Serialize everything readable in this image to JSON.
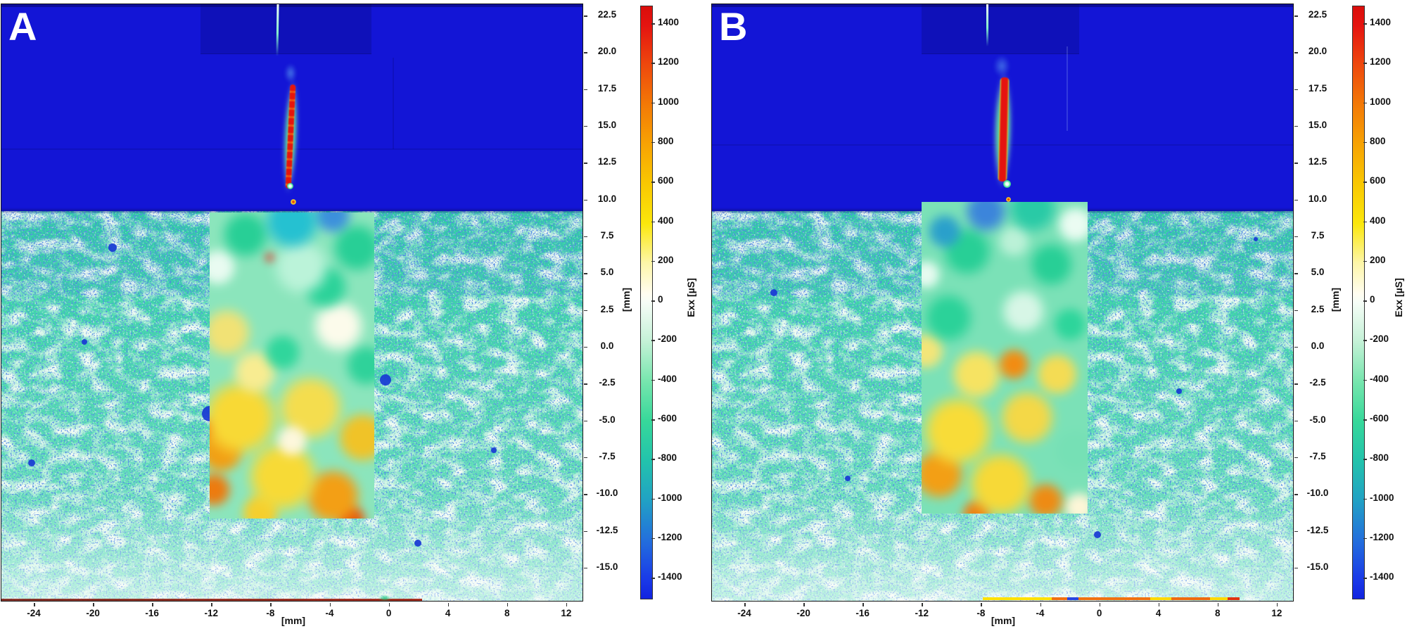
{
  "figure": {
    "type": "DIC horizontal strain (Exx) field comparison, two panels",
    "panels": [
      {
        "label": "A"
      },
      {
        "label": "B"
      }
    ],
    "axes": {
      "x_unit": "[mm]",
      "y_unit": "[mm]",
      "x_ticks": [
        "-24",
        "-20",
        "-16",
        "-12",
        "-8",
        "-4",
        "0",
        "4",
        "8",
        "12"
      ],
      "y_ticks": [
        "22.5",
        "20.0",
        "17.5",
        "15.0",
        "12.5",
        "10.0",
        "7.5",
        "5.0",
        "2.5",
        "0.0",
        "-2.5",
        "-5.0",
        "-7.5",
        "-10.0",
        "-12.5",
        "-15.0"
      ]
    },
    "colorbar": {
      "label": "Exx [µS]",
      "ticks": [
        "1400",
        "1200",
        "1000",
        "800",
        "600",
        "400",
        "200",
        "0",
        "-200",
        "-400",
        "-600",
        "-800",
        "-1000",
        "-1200",
        "-1400"
      ],
      "gradient_top_color": "#e01410",
      "gradient_zero_color": "#f4fcf5",
      "gradient_bottom_color": "#1123e0"
    },
    "colors": {
      "zero_strain_blue": "#1315d6",
      "speckle_teal": "#3ed3a6",
      "crack_red": "#e51310",
      "crack_halo_green": "#5aeb96",
      "overlay_yellow": "#f6d93d",
      "overlay_orange": "#ee9f1b"
    }
  },
  "chart_data": [
    {
      "id": "A",
      "type": "heatmap",
      "title": "",
      "xlabel": "[mm]",
      "ylabel": "[mm]",
      "x_range": [
        -26.3,
        13.1
      ],
      "y_range": [
        -17.3,
        23.2
      ],
      "x_ticks": [
        -24,
        -20,
        -16,
        -12,
        -8,
        -4,
        0,
        4,
        8,
        12
      ],
      "y_ticks": [
        22.5,
        20.0,
        17.5,
        15.0,
        12.5,
        10.0,
        7.5,
        5.0,
        2.5,
        0.0,
        -2.5,
        -5.0,
        -7.5,
        -10.0,
        -12.5,
        -15.0
      ],
      "colorbar": {
        "label": "Exx [µS]",
        "range": [
          -1500,
          1500
        ],
        "ticks": [
          1400,
          1200,
          1000,
          800,
          600,
          400,
          200,
          0,
          -200,
          -400,
          -600,
          -800,
          -1000,
          -1200,
          -1400
        ]
      },
      "features": {
        "upper_zone": "near-zero / compressive strain, deep blue, spans y ≈ 9.3 to 23.2 mm",
        "crack": {
          "x_mm": -6.5,
          "y_span_mm": [
            11.0,
            17.9
          ],
          "value": "saturated red > 1400 µS",
          "width": "thin, mottled red-yellow core with green halo"
        },
        "pre_crack_trace": {
          "x_mm": -6.7,
          "y_span_mm": [
            19.9,
            23.2
          ],
          "value": "faint pale green line"
        },
        "speckled_zone": "measured strain on speckled surface, teal ≈ -400 to -700 µS with blue dots, y below ≈ 9.3 mm",
        "overlay_region": {
          "x_mm": [
            -12.1,
            -1.0
          ],
          "y_mm": [
            -11.7,
            9.1
          ],
          "character": "smoothed strain patch: green (≈ -400 µS) at top grading to yellow-orange (≈ +400 to +900 µS) at bottom, small red spot near top"
        }
      }
    },
    {
      "id": "B",
      "type": "heatmap",
      "title": "",
      "xlabel": "[mm]",
      "ylabel": "[mm]",
      "x_range": [
        -26.3,
        13.1
      ],
      "y_range": [
        -17.3,
        23.2
      ],
      "x_ticks": [
        -24,
        -20,
        -16,
        -12,
        -8,
        -4,
        0,
        4,
        8,
        12
      ],
      "y_ticks": [
        22.5,
        20.0,
        17.5,
        15.0,
        12.5,
        10.0,
        7.5,
        5.0,
        2.5,
        0.0,
        -2.5,
        -5.0,
        -7.5,
        -10.0,
        -12.5,
        -15.0
      ],
      "colorbar": {
        "label": "Exx [µS]",
        "range": [
          -1500,
          1500
        ],
        "ticks": [
          1400,
          1200,
          1000,
          800,
          600,
          400,
          200,
          0,
          -200,
          -400,
          -600,
          -800,
          -1000,
          -1200,
          -1400
        ]
      },
      "features": {
        "upper_zone": "near-zero / compressive strain, deep blue, spans y ≈ 9.3 to 23.2 mm",
        "crack": {
          "x_mm": -6.3,
          "y_span_mm": [
            11.6,
            18.4
          ],
          "value": "saturated red > 1400 µS",
          "width": "wide solid red core with green rim (opened crack)"
        },
        "pre_crack_trace": {
          "x_mm": -6.6,
          "y_span_mm": [
            20.5,
            23.2
          ],
          "value": "faint pale green line"
        },
        "speckled_zone": "measured strain on speckled surface, teal ≈ -400 to -700 µS with blue dots, y below ≈ 9.3 mm",
        "overlay_region": {
          "x_mm": [
            -12.0,
            -0.8
          ],
          "y_mm": [
            -11.3,
            9.8
          ],
          "character": "smoothed strain patch: mostly green with dark blue-teal blobs at top, yellow-orange (≈ +400 to +800 µS) in lower third"
        },
        "bottom_edge_artifact": "yellow-orange-red strip along bottom image edge from x ≈ -8 to 9 mm"
      }
    }
  ]
}
